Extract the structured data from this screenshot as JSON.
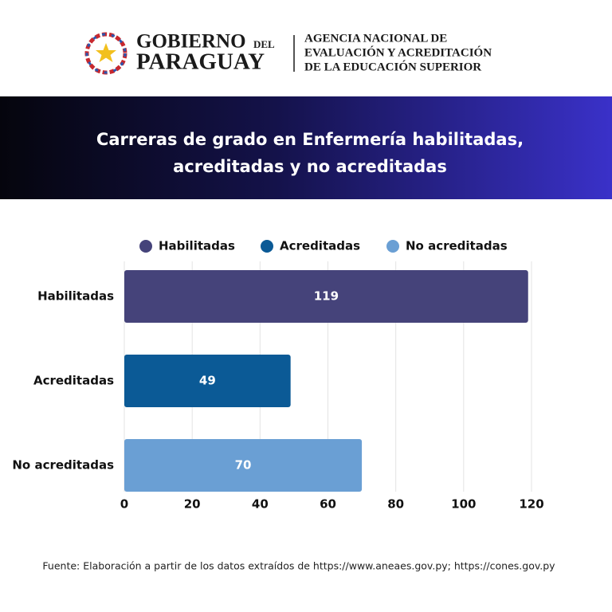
{
  "header": {
    "logo_line1": "GOBIERNO",
    "logo_small": "DEL",
    "logo_line2": "PARAGUAY",
    "agency": [
      "AGENCIA NACIONAL DE",
      "EVALUACIÓN Y ACREDITACIÓN",
      "DE LA EDUCACIÓN SUPERIOR"
    ]
  },
  "chart_data": {
    "type": "hbar",
    "title": [
      "Carreras de grado en Enfermería habilitadas,",
      "acreditadas y no acreditadas"
    ],
    "categories": [
      "Habilitadas",
      "Acreditadas",
      "No acreditadas"
    ],
    "series": [
      {
        "name": "Habilitadas",
        "color": "#45437a",
        "values": [
          119,
          null,
          null
        ]
      },
      {
        "name": "Acreditadas",
        "color": "#0b5a96",
        "values": [
          null,
          49,
          null
        ]
      },
      {
        "name": "No acreditadas",
        "color": "#6a9fd4",
        "values": [
          null,
          null,
          70
        ]
      }
    ],
    "xlim": [
      0,
      120
    ],
    "xticks": [
      0,
      20,
      40,
      60,
      80,
      100,
      120
    ],
    "grid": true,
    "legend": "top"
  },
  "source": "Fuente: Elaboración a partir de los datos extraídos de  https://www.aneaes.gov.py; https://cones.gov.py"
}
